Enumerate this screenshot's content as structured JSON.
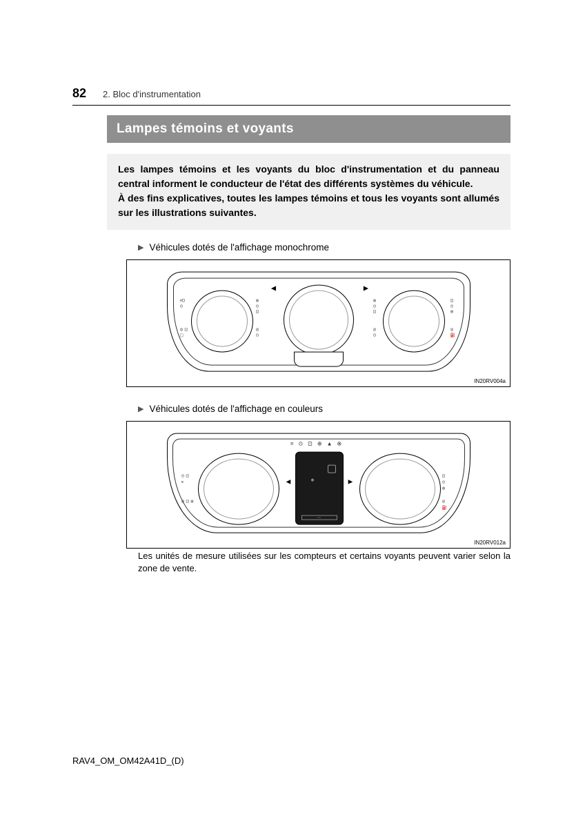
{
  "page": {
    "number": "82",
    "section_label": "2. Bloc d'instrumentation"
  },
  "title": "Lampes témoins et voyants",
  "intro": {
    "p1": "Les lampes témoins et les voyants du bloc d'instrumentation et du panneau central informent le conducteur de l'état des différents systèmes du véhicule.",
    "p2": "À des fins explicatives, toutes les lampes témoins et tous les voyants sont allumés sur les illustrations suivantes."
  },
  "subheads": {
    "mono": "Véhicules dotés de l'affichage monochrome",
    "color": "Véhicules dotés de l'affichage en couleurs"
  },
  "figures": {
    "mono_code": "IN20RV004a",
    "color_code": "IN20RV012a"
  },
  "caption": "Les unités de mesure utilisées sur les compteurs et certains voyants peuvent varier selon la zone de vente.",
  "footer": "RAV4_OM_OM42A41D_(D)",
  "colors": {
    "titlebar_bg": "#8f8f8f",
    "titlebar_fg": "#ffffff",
    "introbox_bg": "#f0f0f0",
    "figure_border": "#000000",
    "page_bg": "#ffffff"
  },
  "fonts": {
    "pagenum_pt": 18,
    "section_pt": 13,
    "title_pt": 19,
    "body_pt": 14,
    "sub_pt": 13.5,
    "caption_pt": 13,
    "figcode_pt": 8,
    "footer_pt": 13
  }
}
